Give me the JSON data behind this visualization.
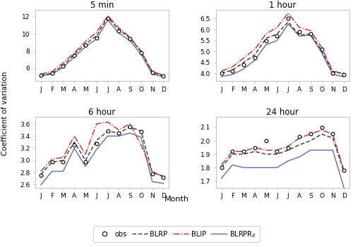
{
  "months": [
    "J",
    "F",
    "M",
    "A",
    "M",
    "J",
    "J",
    "A",
    "S",
    "O",
    "N",
    "D"
  ],
  "panels": [
    {
      "title": "5 min",
      "ylim": [
        4.5,
        12.8
      ],
      "yticks": [
        6,
        8,
        10,
        12
      ],
      "obs": [
        5.2,
        5.4,
        6.2,
        7.5,
        8.7,
        9.5,
        11.8,
        10.3,
        9.4,
        7.8,
        5.5,
        5.1
      ],
      "blrp": [
        5.2,
        5.4,
        6.3,
        7.6,
        8.8,
        9.8,
        11.9,
        10.5,
        9.5,
        7.9,
        5.5,
        5.1
      ],
      "blip": [
        5.3,
        5.6,
        6.6,
        7.8,
        9.1,
        10.2,
        12.1,
        10.7,
        9.6,
        8.0,
        5.6,
        5.2
      ],
      "blrprx": [
        5.1,
        5.3,
        6.1,
        7.3,
        8.5,
        9.4,
        11.6,
        10.1,
        9.2,
        7.6,
        5.3,
        5.0
      ]
    },
    {
      "title": "1 hour",
      "ylim": [
        3.65,
        6.9
      ],
      "yticks": [
        4.0,
        4.5,
        5.0,
        5.5,
        6.0,
        6.5
      ],
      "obs": [
        4.0,
        4.1,
        4.4,
        4.7,
        5.5,
        5.7,
        6.5,
        5.9,
        5.8,
        5.1,
        4.0,
        3.95
      ],
      "blrp": [
        4.0,
        4.15,
        4.5,
        4.85,
        5.6,
        5.8,
        6.35,
        5.75,
        5.8,
        5.05,
        4.05,
        4.0
      ],
      "blip": [
        4.1,
        4.3,
        4.7,
        5.1,
        5.8,
        6.1,
        6.75,
        6.1,
        5.95,
        5.2,
        4.1,
        4.0
      ],
      "blrprx": [
        3.85,
        3.95,
        4.2,
        4.6,
        5.3,
        5.5,
        6.25,
        5.7,
        5.75,
        4.95,
        3.95,
        3.85
      ]
    },
    {
      "title": "6 hour",
      "ylim": [
        2.55,
        3.72
      ],
      "yticks": [
        2.6,
        2.8,
        3.0,
        3.2,
        3.4,
        3.6
      ],
      "obs": [
        2.75,
        2.97,
        2.98,
        3.25,
        2.98,
        3.28,
        3.48,
        3.45,
        3.55,
        3.47,
        2.78,
        2.72
      ],
      "blrp": [
        2.77,
        2.97,
        3.0,
        3.3,
        3.0,
        3.33,
        3.48,
        3.45,
        3.55,
        3.48,
        2.8,
        2.74
      ],
      "blip": [
        2.82,
        3.02,
        3.05,
        3.4,
        3.1,
        3.6,
        3.63,
        3.5,
        3.6,
        3.25,
        2.82,
        2.72
      ],
      "blrprx": [
        2.6,
        2.82,
        2.82,
        3.2,
        2.9,
        3.18,
        3.4,
        3.4,
        3.45,
        3.38,
        2.65,
        2.62
      ]
    },
    {
      "title": "24 hour",
      "ylim": [
        1.65,
        2.18
      ],
      "yticks": [
        1.7,
        1.8,
        1.9,
        2.0,
        2.1
      ],
      "obs": [
        1.8,
        1.92,
        1.92,
        1.95,
        2.0,
        1.92,
        1.95,
        2.03,
        2.05,
        2.1,
        2.05,
        1.78
      ],
      "blrp": [
        1.8,
        1.9,
        1.9,
        1.92,
        1.9,
        1.9,
        1.93,
        1.97,
        2.0,
        2.05,
        2.02,
        1.77
      ],
      "blip": [
        1.82,
        1.92,
        1.92,
        1.95,
        1.93,
        1.93,
        1.96,
        2.02,
        2.05,
        2.08,
        2.05,
        1.78
      ],
      "blrprx": [
        1.72,
        1.82,
        1.8,
        1.8,
        1.8,
        1.8,
        1.85,
        1.88,
        1.93,
        1.93,
        1.93,
        1.65
      ]
    }
  ],
  "colors": {
    "obs": "#000000",
    "blrp": "#333333",
    "blip": "#cc2222",
    "blrprx": "#6666bb"
  },
  "ylabel": "Coefficient of variation",
  "xlabel": "Month",
  "bg_color": "#ffffff"
}
